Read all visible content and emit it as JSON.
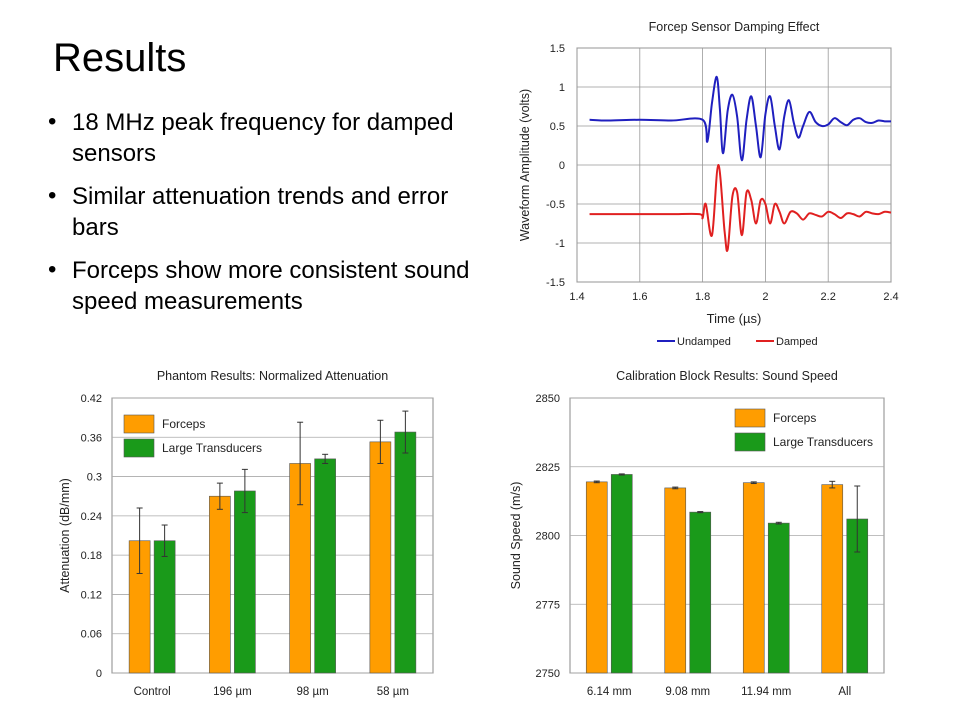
{
  "slide": {
    "title": "Results",
    "bullets": [
      "18 MHz peak frequency for damped sensors",
      "Similar attenuation trends and error bars",
      "Forceps show more consistent sound speed measurements"
    ]
  },
  "chart_data": [
    {
      "type": "line",
      "title": "Forcep Sensor Damping Effect",
      "xlabel": "Time (µs)",
      "ylabel": "Waveform Amplitude (volts)",
      "xlim": [
        1.4,
        2.4
      ],
      "ylim": [
        -1.5,
        1.5
      ],
      "xticks": [
        "1.4",
        "1.6",
        "1.8",
        "2",
        "2.2",
        "2.4"
      ],
      "yticks": [
        "1.5",
        "1",
        "0.5",
        "0",
        "-0.5",
        "-1",
        "-1.5"
      ],
      "grid": true,
      "legend": "bottom",
      "series": [
        {
          "name": "Undamped",
          "color": "#1f1fbf",
          "x": [
            1.44,
            1.5,
            1.6,
            1.7,
            1.8,
            1.815,
            1.83,
            1.845,
            1.855,
            1.865,
            1.88,
            1.895,
            1.91,
            1.925,
            1.94,
            1.955,
            1.97,
            1.985,
            2.0,
            2.015,
            2.03,
            2.045,
            2.06,
            2.075,
            2.09,
            2.105,
            2.12,
            2.14,
            2.16,
            2.18,
            2.2,
            2.22,
            2.24,
            2.26,
            2.28,
            2.3,
            2.32,
            2.34,
            2.36,
            2.38,
            2.4
          ],
          "y": [
            0.58,
            0.57,
            0.58,
            0.57,
            0.58,
            0.3,
            0.8,
            1.13,
            0.72,
            0.15,
            0.7,
            0.9,
            0.62,
            0.06,
            0.58,
            0.88,
            0.5,
            0.1,
            0.65,
            0.88,
            0.5,
            0.2,
            0.62,
            0.83,
            0.55,
            0.35,
            0.5,
            0.68,
            0.55,
            0.5,
            0.52,
            0.6,
            0.55,
            0.51,
            0.58,
            0.6,
            0.55,
            0.54,
            0.57,
            0.56,
            0.56
          ]
        },
        {
          "name": "Damped",
          "color": "#e02020",
          "x": [
            1.44,
            1.5,
            1.6,
            1.7,
            1.79,
            1.8,
            1.81,
            1.83,
            1.85,
            1.87,
            1.88,
            1.895,
            1.91,
            1.925,
            1.94,
            1.955,
            1.97,
            1.985,
            2.0,
            2.015,
            2.03,
            2.045,
            2.06,
            2.08,
            2.1,
            2.12,
            2.14,
            2.16,
            2.18,
            2.2,
            2.22,
            2.24,
            2.26,
            2.28,
            2.3,
            2.32,
            2.34,
            2.36,
            2.38,
            2.4
          ],
          "y": [
            -0.63,
            -0.63,
            -0.63,
            -0.63,
            -0.63,
            -0.68,
            -0.5,
            -0.9,
            0.0,
            -0.85,
            -1.08,
            -0.4,
            -0.35,
            -0.9,
            -0.35,
            -0.45,
            -0.75,
            -0.45,
            -0.5,
            -0.75,
            -0.5,
            -0.6,
            -0.75,
            -0.6,
            -0.62,
            -0.7,
            -0.62,
            -0.64,
            -0.66,
            -0.6,
            -0.63,
            -0.68,
            -0.62,
            -0.63,
            -0.66,
            -0.6,
            -0.62,
            -0.63,
            -0.6,
            -0.61
          ]
        }
      ]
    },
    {
      "type": "bar",
      "title": "Phantom Results:  Normalized Attenuation",
      "xlabel": "",
      "ylabel": "Attenuation (dB/mm)",
      "ylim": [
        0,
        0.42
      ],
      "yticks": [
        "0.42",
        "0.36",
        "0.3",
        "0.24",
        "0.18",
        "0.12",
        "0.06",
        "0"
      ],
      "categories": [
        "Control",
        "196 µm",
        "98 µm",
        "58 µm"
      ],
      "legend": "top-left",
      "series": [
        {
          "name": "Forceps",
          "color": "#ff9d00",
          "values": [
            0.202,
            0.27,
            0.32,
            0.353
          ],
          "errors": [
            0.05,
            0.02,
            0.063,
            0.033
          ]
        },
        {
          "name": "Large Transducers",
          "color": "#1a9a1a",
          "values": [
            0.202,
            0.278,
            0.327,
            0.368
          ],
          "errors": [
            0.024,
            0.033,
            0.007,
            0.032
          ]
        }
      ]
    },
    {
      "type": "bar",
      "title": "Calibration Block Results:  Sound Speed",
      "xlabel": "",
      "ylabel": "Sound Speed  (m/s)",
      "ylim": [
        2750,
        2850
      ],
      "yticks": [
        "2850",
        "2825",
        "2800",
        "2775",
        "2750"
      ],
      "categories": [
        "6.14 mm",
        "9.08 mm",
        "11.94 mm",
        "All"
      ],
      "legend": "top-right",
      "series": [
        {
          "name": "Forceps",
          "color": "#ff9d00",
          "values": [
            2819.5,
            2817.3,
            2819.2,
            2818.5
          ],
          "errors": [
            0.3,
            0.3,
            0.3,
            1.2
          ]
        },
        {
          "name": "Large Transducers",
          "color": "#1a9a1a",
          "values": [
            2822.2,
            2808.5,
            2804.5,
            2806.0
          ],
          "errors": [
            0.2,
            0.2,
            0.3,
            12.0
          ]
        }
      ]
    }
  ]
}
